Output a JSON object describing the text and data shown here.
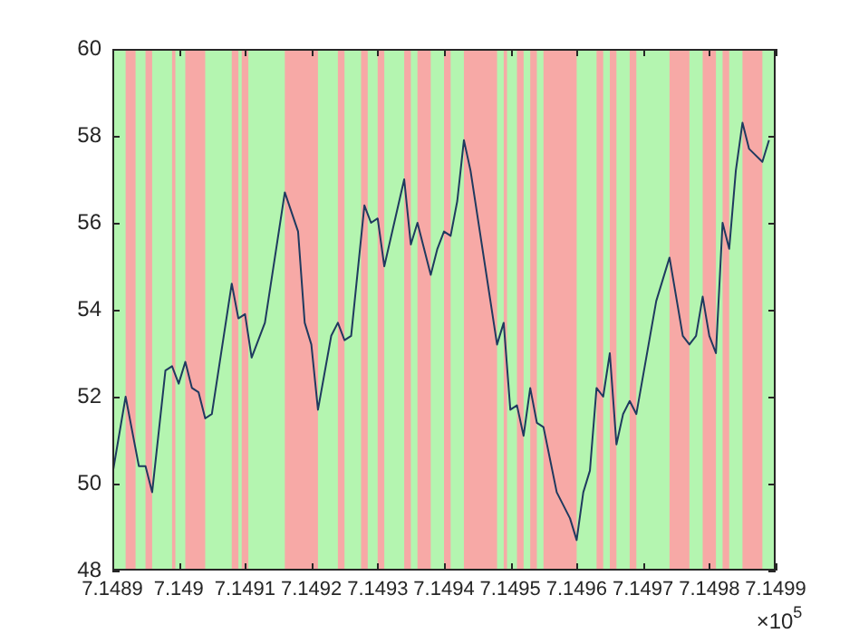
{
  "chart_data": {
    "type": "line",
    "series": [
      {
        "color": "#1f3a5f",
        "x": [
          7.1489,
          7.14892,
          7.14894,
          7.14895,
          7.14896,
          7.14898,
          7.14899,
          7.149,
          7.14901,
          7.14902,
          7.14903,
          7.14904,
          7.14905,
          7.14908,
          7.14909,
          7.1491,
          7.14911,
          7.14913,
          7.14916,
          7.14918,
          7.14919,
          7.1492,
          7.14921,
          7.14923,
          7.14924,
          7.14925,
          7.14926,
          7.14928,
          7.14929,
          7.1493,
          7.14931,
          7.14934,
          7.14935,
          7.14936,
          7.14938,
          7.14939,
          7.1494,
          7.14941,
          7.14942,
          7.14943,
          7.14944,
          7.14948,
          7.14949,
          7.1495,
          7.14951,
          7.14952,
          7.14953,
          7.14954,
          7.14955,
          7.14957,
          7.14959,
          7.1496,
          7.14961,
          7.14962,
          7.14963,
          7.14964,
          7.14965,
          7.14966,
          7.14967,
          7.14968,
          7.14969,
          7.14972,
          7.14974,
          7.14976,
          7.14977,
          7.14978,
          7.14979,
          7.1498,
          7.14981,
          7.14982,
          7.14983,
          7.14984,
          7.14985,
          7.14986,
          7.14988,
          7.14989
        ],
        "values": [
          50.2,
          52.0,
          50.4,
          50.4,
          49.8,
          52.6,
          52.7,
          52.3,
          52.8,
          52.2,
          52.1,
          51.5,
          51.6,
          54.6,
          53.8,
          53.9,
          52.9,
          53.7,
          56.7,
          55.8,
          53.7,
          53.2,
          51.7,
          53.4,
          53.7,
          53.3,
          53.4,
          56.4,
          56.0,
          56.1,
          55.0,
          57.0,
          55.5,
          56.0,
          54.8,
          55.4,
          55.8,
          55.7,
          56.5,
          57.9,
          57.2,
          53.2,
          53.7,
          51.7,
          51.8,
          51.1,
          52.2,
          51.4,
          51.3,
          49.8,
          49.2,
          48.7,
          49.8,
          50.3,
          52.2,
          52.0,
          53.0,
          50.9,
          51.6,
          51.9,
          51.6,
          54.2,
          55.2,
          53.4,
          53.2,
          53.4,
          54.3,
          53.4,
          53.0,
          56.0,
          55.4,
          57.2,
          58.3,
          57.7,
          57.4,
          57.9
        ]
      }
    ],
    "xlim": [
      7.1489,
      7.1499
    ],
    "xticks": [
      7.1489,
      7.149,
      7.1491,
      7.1492,
      7.1493,
      7.1494,
      7.1495,
      7.1496,
      7.1497,
      7.1498,
      7.1499
    ],
    "ylim": [
      48,
      60
    ],
    "yticks": [
      48,
      50,
      52,
      54,
      56,
      58,
      60
    ],
    "bands": [
      {
        "axis": "x",
        "from": 7.1489,
        "to": 7.1499,
        "color": "#b4f5b0"
      },
      {
        "axis": "x",
        "from": 7.14892,
        "to": 7.148935,
        "color": "#f7a9a6"
      },
      {
        "axis": "x",
        "from": 7.14895,
        "to": 7.14896,
        "color": "#f7a9a6"
      },
      {
        "axis": "x",
        "from": 7.14899,
        "to": 7.148995,
        "color": "#f7a9a6"
      },
      {
        "axis": "x",
        "from": 7.14901,
        "to": 7.14904,
        "color": "#f7a9a6"
      },
      {
        "axis": "x",
        "from": 7.14908,
        "to": 7.14909,
        "color": "#f7a9a6"
      },
      {
        "axis": "x",
        "from": 7.149095,
        "to": 7.149105,
        "color": "#f7a9a6"
      },
      {
        "axis": "x",
        "from": 7.14916,
        "to": 7.14921,
        "color": "#f7a9a6"
      },
      {
        "axis": "x",
        "from": 7.14924,
        "to": 7.14925,
        "color": "#f7a9a6"
      },
      {
        "axis": "x",
        "from": 7.149275,
        "to": 7.149285,
        "color": "#f7a9a6"
      },
      {
        "axis": "x",
        "from": 7.1493,
        "to": 7.14931,
        "color": "#f7a9a6"
      },
      {
        "axis": "x",
        "from": 7.14934,
        "to": 7.14935,
        "color": "#f7a9a6"
      },
      {
        "axis": "x",
        "from": 7.14936,
        "to": 7.14938,
        "color": "#f7a9a6"
      },
      {
        "axis": "x",
        "from": 7.1494,
        "to": 7.14941,
        "color": "#f7a9a6"
      },
      {
        "axis": "x",
        "from": 7.14943,
        "to": 7.14948,
        "color": "#f7a9a6"
      },
      {
        "axis": "x",
        "from": 7.14949,
        "to": 7.149495,
        "color": "#f7a9a6"
      },
      {
        "axis": "x",
        "from": 7.14951,
        "to": 7.14952,
        "color": "#f7a9a6"
      },
      {
        "axis": "x",
        "from": 7.14953,
        "to": 7.14954,
        "color": "#f7a9a6"
      },
      {
        "axis": "x",
        "from": 7.14955,
        "to": 7.1496,
        "color": "#f7a9a6"
      },
      {
        "axis": "x",
        "from": 7.14963,
        "to": 7.14964,
        "color": "#f7a9a6"
      },
      {
        "axis": "x",
        "from": 7.14965,
        "to": 7.14966,
        "color": "#f7a9a6"
      },
      {
        "axis": "x",
        "from": 7.14968,
        "to": 7.14969,
        "color": "#f7a9a6"
      },
      {
        "axis": "x",
        "from": 7.14974,
        "to": 7.14977,
        "color": "#f7a9a6"
      },
      {
        "axis": "x",
        "from": 7.14979,
        "to": 7.14981,
        "color": "#f7a9a6"
      },
      {
        "axis": "x",
        "from": 7.14982,
        "to": 7.14983,
        "color": "#f7a9a6"
      },
      {
        "axis": "x",
        "from": 7.14985,
        "to": 7.14988,
        "color": "#f7a9a6"
      }
    ],
    "annotations": [
      "×10$^{5}$"
    ],
    "grid": false,
    "legend": false
  }
}
